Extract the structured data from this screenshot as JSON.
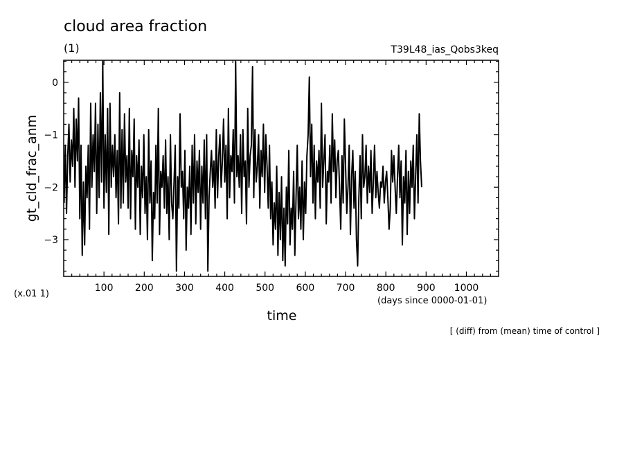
{
  "chart_data": {
    "type": "line",
    "title": "cloud area fraction",
    "subtitle": "(1)",
    "run_label": "T39L48_ias_Qobs3keq",
    "xlabel": "time",
    "x_unit": "(days since 0000-01-01)",
    "ylabel": "gt_cld_frac_anm",
    "y_scale_note": "(x.01 1)",
    "footnote": "[ (diff) from (mean) time of control ]",
    "xlim": [
      0,
      1080
    ],
    "ylim": [
      -3.7,
      0.42
    ],
    "x_ticks": [
      100,
      200,
      300,
      400,
      500,
      600,
      700,
      800,
      900,
      1000
    ],
    "y_ticks": [
      0,
      -1,
      -2,
      -3
    ],
    "y_tick_labels": [
      "0",
      "−1",
      "−2",
      "−3"
    ],
    "grid": false,
    "series": [
      {
        "x_start": 1,
        "x_step": 3,
        "values": [
          -2.3,
          -1.2,
          -2.5,
          -1.4,
          -0.8,
          -1.9,
          -1.1,
          -1.6,
          -0.5,
          -2.0,
          -0.7,
          -1.5,
          -0.3,
          -2.6,
          -1.2,
          -3.3,
          -1.9,
          -3.1,
          -1.6,
          -2.2,
          -1.2,
          -2.8,
          -0.4,
          -2.0,
          -1.0,
          -1.7,
          -0.4,
          -2.5,
          -0.8,
          -2.2,
          -0.2,
          -1.9,
          0.4,
          -2.4,
          -1.0,
          -2.1,
          -0.5,
          -2.9,
          -0.4,
          -2.0,
          -1.2,
          -1.8,
          -1.0,
          -2.2,
          -1.3,
          -2.7,
          -0.2,
          -2.4,
          -0.9,
          -2.3,
          -0.6,
          -1.9,
          -1.4,
          -2.4,
          -0.5,
          -2.6,
          -1.3,
          -1.8,
          -0.7,
          -2.8,
          -1.4,
          -2.0,
          -1.1,
          -2.9,
          -1.6,
          -2.2,
          -1.0,
          -2.5,
          -1.8,
          -3.0,
          -0.9,
          -2.3,
          -1.5,
          -3.4,
          -2.1,
          -2.6,
          -1.2,
          -2.3,
          -0.5,
          -2.9,
          -1.7,
          -2.0,
          -1.4,
          -2.4,
          -1.1,
          -2.5,
          -1.8,
          -3.0,
          -1.0,
          -2.3,
          -2.6,
          -1.9,
          -1.2,
          -3.6,
          -1.8,
          -2.4,
          -0.6,
          -2.0,
          -1.7,
          -2.6,
          -1.3,
          -3.2,
          -2.0,
          -2.4,
          -1.6,
          -2.9,
          -1.2,
          -2.3,
          -1.0,
          -2.7,
          -1.5,
          -2.1,
          -1.3,
          -2.8,
          -1.6,
          -2.3,
          -1.1,
          -2.6,
          -1.0,
          -3.6,
          -2.2,
          -1.7,
          -1.3,
          -2.0,
          -1.5,
          -2.4,
          -0.9,
          -2.2,
          -1.4,
          -1.0,
          -2.0,
          -1.5,
          -0.7,
          -1.9,
          -1.2,
          -2.6,
          -0.5,
          -2.2,
          -1.4,
          -1.7,
          -0.9,
          -2.3,
          0.4,
          -1.8,
          -1.4,
          -2.0,
          -1.0,
          -2.5,
          -0.9,
          -1.8,
          -1.5,
          -2.7,
          -0.5,
          -2.0,
          -1.4,
          -1.2,
          0.3,
          -2.2,
          -0.9,
          -1.9,
          -1.6,
          -1.0,
          -2.4,
          -1.3,
          -1.8,
          -0.8,
          -2.1,
          -1.0,
          -1.6,
          -2.4,
          -1.2,
          -2.6,
          -1.9,
          -3.1,
          -2.3,
          -2.8,
          -1.6,
          -3.3,
          -2.1,
          -3.0,
          -1.8,
          -3.4,
          -2.4,
          -3.5,
          -2.0,
          -2.7,
          -1.3,
          -3.1,
          -2.4,
          -2.8,
          -1.7,
          -3.3,
          -2.2,
          -1.2,
          -2.6,
          -2.0,
          -2.8,
          -1.5,
          -3.0,
          -1.9,
          -2.5,
          -1.4,
          -1.0,
          0.1,
          -1.8,
          -0.8,
          -2.3,
          -1.2,
          -2.6,
          -1.5,
          -1.9,
          -1.3,
          -2.4,
          -0.4,
          -2.0,
          -1.5,
          -1.0,
          -2.7,
          -1.7,
          -1.9,
          -1.2,
          -2.3,
          -0.6,
          -1.7,
          -1.1,
          -2.2,
          -1.5,
          -1.3,
          -2.0,
          -2.8,
          -1.4,
          -2.3,
          -0.7,
          -1.6,
          -2.5,
          -2.0,
          -1.2,
          -2.9,
          -1.8,
          -1.3,
          -2.4,
          -1.7,
          -3.0,
          -3.5,
          -2.2,
          -1.4,
          -2.6,
          -1.0,
          -2.0,
          -1.8,
          -1.2,
          -2.3,
          -1.6,
          -2.1,
          -1.3,
          -2.5,
          -1.9,
          -1.2,
          -2.2,
          -1.7,
          -2.1,
          -2.4,
          -1.9,
          -2.0,
          -1.6,
          -2.3,
          -1.9,
          -1.7,
          -2.2,
          -2.8,
          -2.4,
          -1.3,
          -1.9,
          -1.4,
          -2.0,
          -2.5,
          -1.8,
          -1.2,
          -2.2,
          -1.5,
          -3.1,
          -1.8,
          -2.3,
          -1.3,
          -2.9,
          -1.7,
          -2.5,
          -1.5,
          -2.0,
          -1.2,
          -2.6,
          -1.8,
          -1.0,
          -2.3,
          -0.6,
          -1.5,
          -2.0
        ]
      }
    ]
  }
}
